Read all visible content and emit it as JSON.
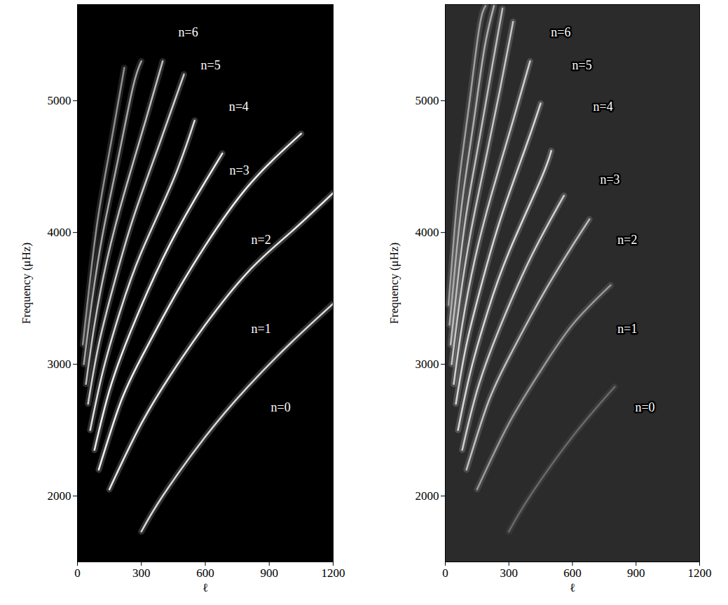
{
  "chart_data": [
    {
      "type": "line",
      "x_label": "ℓ",
      "y_label": "Frequency (μHz)",
      "xlim": [
        0,
        1200
      ],
      "xticks": [
        0,
        300,
        600,
        900,
        1200
      ],
      "ylim": [
        1500,
        5730
      ],
      "yticks": [
        2000,
        3000,
        4000,
        5000
      ],
      "series": [
        {
          "color": "#d8d8d8",
          "x": [
            300,
            400,
            600,
            800,
            1000,
            1200
          ],
          "values": [
            1730,
            2000,
            2450,
            2830,
            3160,
            3460
          ]
        },
        {
          "color": "#e8e8e8",
          "x": [
            150,
            300,
            450,
            600,
            800,
            1000,
            1200
          ],
          "values": [
            2050,
            2550,
            2950,
            3300,
            3700,
            4000,
            4300
          ]
        },
        {
          "color": "#f0f0f0",
          "x": [
            100,
            200,
            300,
            450,
            600,
            800,
            1050
          ],
          "values": [
            2200,
            2700,
            3050,
            3500,
            3900,
            4350,
            4750
          ]
        },
        {
          "color": "#f0f0f0",
          "x": [
            80,
            150,
            250,
            400,
            550,
            680
          ],
          "values": [
            2350,
            2800,
            3250,
            3800,
            4250,
            4600
          ]
        },
        {
          "color": "#e0e0e0",
          "x": [
            60,
            120,
            200,
            300,
            450,
            550
          ],
          "values": [
            2500,
            2950,
            3400,
            3850,
            4400,
            4850
          ]
        },
        {
          "color": "#d0d0d0",
          "x": [
            50,
            100,
            170,
            260,
            380,
            500
          ],
          "values": [
            2700,
            3150,
            3600,
            4100,
            4650,
            5200
          ]
        },
        {
          "color": "#c0c0c0",
          "x": [
            40,
            80,
            140,
            220,
            320,
            400
          ],
          "values": [
            2850,
            3300,
            3800,
            4300,
            4850,
            5300
          ]
        },
        {
          "color": "#a8a8a8",
          "x": [
            30,
            70,
            120,
            190,
            260,
            300
          ],
          "values": [
            3000,
            3500,
            4000,
            4550,
            5100,
            5300
          ]
        },
        {
          "color": "#909090",
          "x": [
            25,
            60,
            100,
            160,
            220
          ],
          "values": [
            3150,
            3650,
            4150,
            4700,
            5250
          ]
        }
      ],
      "annotations": [
        {
          "text": "n=6",
          "x": 520,
          "y": 5520
        },
        {
          "text": "n=5",
          "x": 625,
          "y": 5266
        },
        {
          "text": "n=4",
          "x": 757,
          "y": 4955
        },
        {
          "text": "n=3",
          "x": 760,
          "y": 4470
        },
        {
          "text": "n=2",
          "x": 862,
          "y": 3945
        },
        {
          "text": "n=1",
          "x": 862,
          "y": 3267
        },
        {
          "text": "n=0",
          "x": 954,
          "y": 2674
        }
      ]
    },
    {
      "type": "line",
      "x_label": "ℓ",
      "y_label": "Frequency (μHz)",
      "xlim": [
        0,
        1200
      ],
      "xticks": [
        0,
        300,
        600,
        900,
        1200
      ],
      "ylim": [
        1500,
        5730
      ],
      "yticks": [
        2000,
        3000,
        4000,
        5000
      ],
      "series": [
        {
          "color": "#6a6a6a",
          "x": [
            300,
            400,
            600,
            800
          ],
          "values": [
            1730,
            2000,
            2450,
            2830
          ]
        },
        {
          "color": "#9a9a9a",
          "x": [
            150,
            300,
            450,
            600,
            780
          ],
          "values": [
            2050,
            2550,
            2950,
            3300,
            3600
          ]
        },
        {
          "color": "#c0c0c0",
          "x": [
            100,
            200,
            300,
            450,
            600,
            680
          ],
          "values": [
            2200,
            2700,
            3050,
            3500,
            3900,
            4100
          ]
        },
        {
          "color": "#d0d0d0",
          "x": [
            80,
            150,
            250,
            400,
            560
          ],
          "values": [
            2350,
            2800,
            3250,
            3800,
            4280
          ]
        },
        {
          "color": "#d8d8d8",
          "x": [
            60,
            120,
            200,
            300,
            450,
            500
          ],
          "values": [
            2500,
            2950,
            3400,
            3850,
            4400,
            4620
          ]
        },
        {
          "color": "#d8d8d8",
          "x": [
            50,
            100,
            170,
            260,
            380,
            450
          ],
          "values": [
            2700,
            3150,
            3600,
            4100,
            4650,
            4980
          ]
        },
        {
          "color": "#d0d0d0",
          "x": [
            40,
            80,
            140,
            220,
            320,
            400
          ],
          "values": [
            2850,
            3300,
            3800,
            4300,
            4850,
            5300
          ]
        },
        {
          "color": "#c8c8c8",
          "x": [
            30,
            70,
            120,
            190,
            260,
            320
          ],
          "values": [
            3000,
            3500,
            4000,
            4550,
            5100,
            5600
          ]
        },
        {
          "color": "#c0c0c0",
          "x": [
            25,
            60,
            100,
            160,
            220,
            270
          ],
          "values": [
            3150,
            3650,
            4150,
            4700,
            5250,
            5700
          ]
        },
        {
          "color": "#b0b0b0",
          "x": [
            20,
            50,
            85,
            135,
            185,
            230
          ],
          "values": [
            3300,
            3800,
            4300,
            4850,
            5400,
            5720
          ]
        },
        {
          "color": "#a0a0a0",
          "x": [
            15,
            40,
            70,
            115,
            160,
            190
          ],
          "values": [
            3450,
            3950,
            4450,
            5000,
            5550,
            5720
          ]
        }
      ],
      "annotations": [
        {
          "text": "n=6",
          "x": 545,
          "y": 5520
        },
        {
          "text": "n=5",
          "x": 645,
          "y": 5266
        },
        {
          "text": "n=4",
          "x": 744,
          "y": 4955
        },
        {
          "text": "n=3",
          "x": 777,
          "y": 4400
        },
        {
          "text": "n=2",
          "x": 859,
          "y": 3945
        },
        {
          "text": "n=1",
          "x": 859,
          "y": 3267
        },
        {
          "text": "n=0",
          "x": 942,
          "y": 2674
        }
      ]
    }
  ]
}
